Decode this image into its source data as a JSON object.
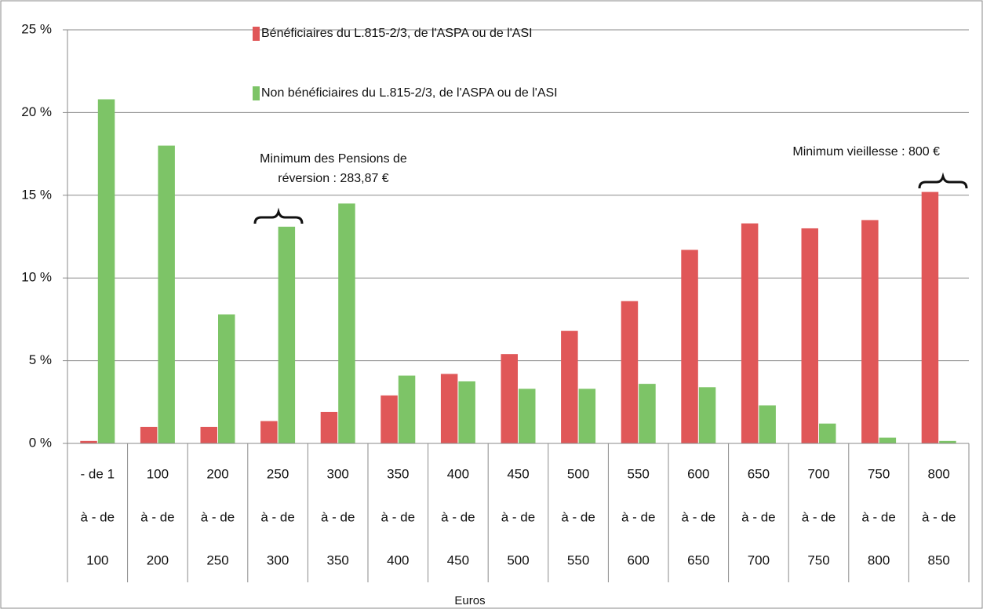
{
  "chart_data": {
    "type": "bar",
    "categories": [
      [
        "- de 1",
        "à - de",
        "100"
      ],
      [
        "100",
        "à - de",
        "200"
      ],
      [
        "200",
        "à - de",
        "250"
      ],
      [
        "250",
        "à - de",
        "300"
      ],
      [
        "300",
        "à - de",
        "350"
      ],
      [
        "350",
        "à - de",
        "400"
      ],
      [
        "400",
        "à - de",
        "450"
      ],
      [
        "450",
        "à - de",
        "500"
      ],
      [
        "500",
        "à - de",
        "550"
      ],
      [
        "550",
        "à - de",
        "600"
      ],
      [
        "600",
        "à - de",
        "650"
      ],
      [
        "650",
        "à - de",
        "700"
      ],
      [
        "700",
        "à - de",
        "750"
      ],
      [
        "750",
        "à - de",
        "800"
      ],
      [
        "800",
        "à - de",
        "850"
      ]
    ],
    "series": [
      {
        "name": "Bénéficiaires du L.815-2/3, de l'ASPA ou de l'ASI",
        "color": "#e05758",
        "values": [
          0.15,
          1.0,
          1.0,
          1.35,
          1.9,
          2.9,
          4.2,
          5.4,
          6.8,
          8.6,
          11.7,
          13.3,
          13.0,
          13.5,
          15.2
        ]
      },
      {
        "name": "Non bénéficiaires du L.815-2/3, de l'ASPA ou de l'ASI",
        "color": "#7dc467",
        "values": [
          20.8,
          18.0,
          7.8,
          13.1,
          14.5,
          4.1,
          3.75,
          3.3,
          3.3,
          3.6,
          3.4,
          2.3,
          1.2,
          0.35,
          0.15
        ]
      }
    ],
    "xlabel": "Euros",
    "ylim": [
      0,
      25
    ],
    "yticks": [
      {
        "value": 0,
        "label": "0 %"
      },
      {
        "value": 5,
        "label": "5 %"
      },
      {
        "value": 10,
        "label": "10 %"
      },
      {
        "value": 15,
        "label": "15 %"
      },
      {
        "value": 20,
        "label": "20 %"
      },
      {
        "value": 25,
        "label": "25 %"
      }
    ],
    "grid": true,
    "annotations": [
      [
        "Minimum des Pensions de",
        "réversion : 283,87 €"
      ],
      [
        "Minimum vieillesse : 800 €"
      ]
    ]
  }
}
